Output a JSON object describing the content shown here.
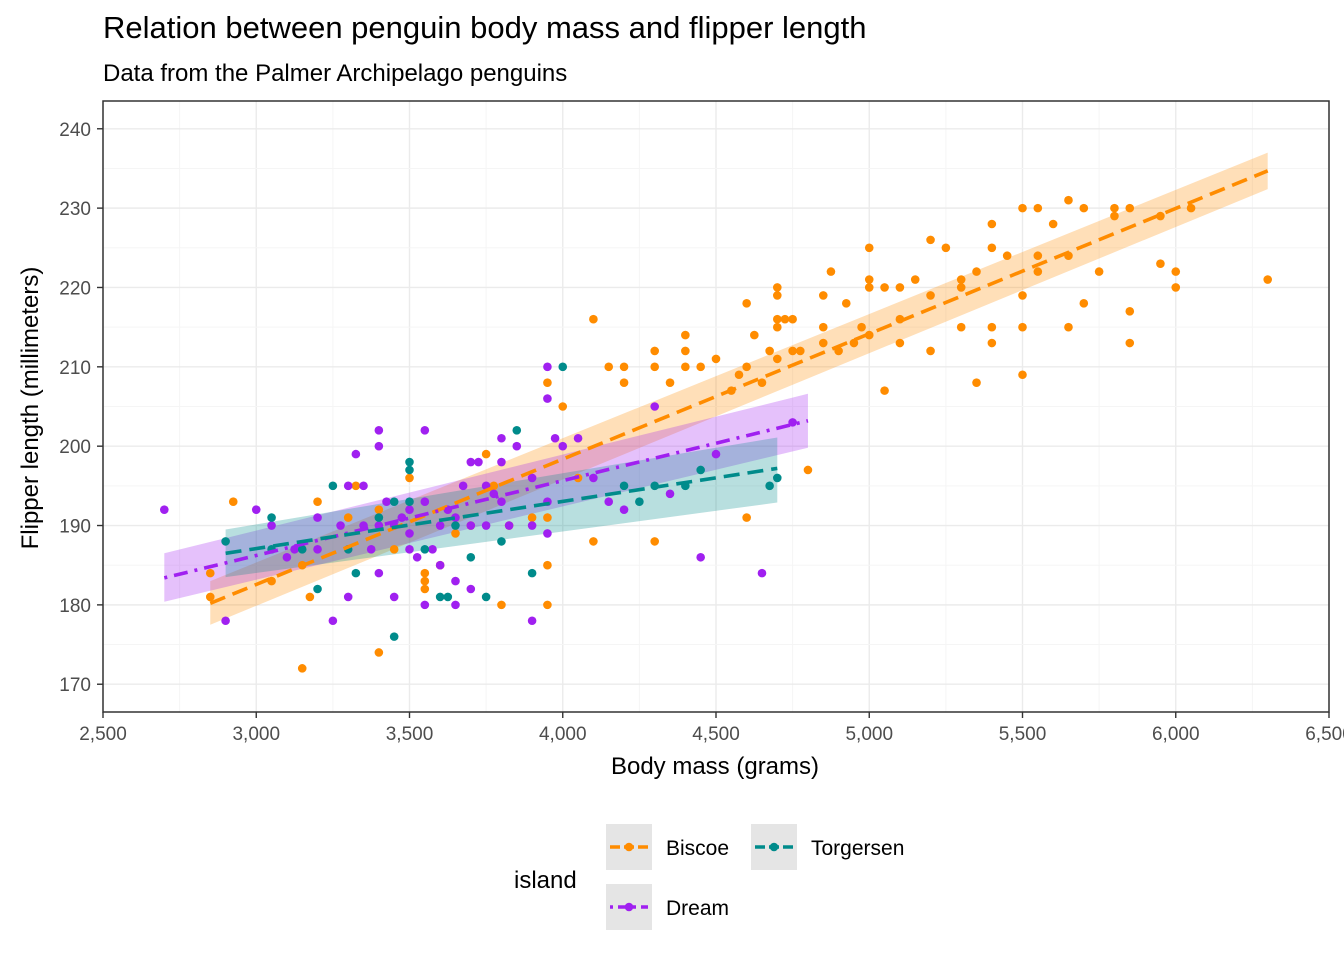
{
  "chart_data": {
    "type": "scatter",
    "title": "Relation between penguin body mass and flipper length",
    "subtitle": "Data from the Palmer Archipelago penguins",
    "xlabel": "Body mass (grams)",
    "ylabel": "Flipper length (millimeters)",
    "xlim": [
      2500,
      6500
    ],
    "ylim": [
      166.5,
      243.5
    ],
    "x_ticks": [
      2500,
      3000,
      3500,
      4000,
      4500,
      5000,
      5500,
      6000,
      6500
    ],
    "x_tick_labels": [
      "2,500",
      "3,000",
      "3,500",
      "4,000",
      "4,500",
      "5,000",
      "5,500",
      "6,000",
      "6,500"
    ],
    "y_ticks": [
      170,
      180,
      190,
      200,
      210,
      220,
      230,
      240
    ],
    "y_tick_labels": [
      "170",
      "180",
      "190",
      "200",
      "210",
      "220",
      "230",
      "240"
    ],
    "grid": true,
    "legend": {
      "title": "island",
      "position": "bottom"
    },
    "series": [
      {
        "name": "Biscoe",
        "color": "#FF8C00",
        "line_style": "dashed",
        "fit": {
          "x": [
            2850,
            6300
          ],
          "y": [
            180.2,
            234.7
          ],
          "se_lower": [
            177.5,
            232.4
          ],
          "se_upper": [
            183.0,
            237.0
          ]
        },
        "points": [
          [
            2850,
            181
          ],
          [
            2850,
            184
          ],
          [
            2925,
            193
          ],
          [
            3050,
            183
          ],
          [
            3150,
            185
          ],
          [
            3150,
            172
          ],
          [
            3175,
            181
          ],
          [
            3200,
            193
          ],
          [
            3300,
            191
          ],
          [
            3325,
            195
          ],
          [
            3400,
            174
          ],
          [
            3400,
            192
          ],
          [
            3450,
            187
          ],
          [
            3500,
            196
          ],
          [
            3550,
            184
          ],
          [
            3550,
            183
          ],
          [
            3550,
            182
          ],
          [
            3600,
            185
          ],
          [
            3650,
            189
          ],
          [
            3700,
            190
          ],
          [
            3750,
            199
          ],
          [
            3775,
            195
          ],
          [
            3800,
            180
          ],
          [
            3825,
            190
          ],
          [
            3900,
            191
          ],
          [
            3950,
            208
          ],
          [
            3950,
            185
          ],
          [
            3950,
            180
          ],
          [
            3950,
            191
          ],
          [
            4000,
            205
          ],
          [
            4050,
            196
          ],
          [
            4100,
            216
          ],
          [
            4100,
            188
          ],
          [
            4150,
            210
          ],
          [
            4200,
            210
          ],
          [
            4200,
            208
          ],
          [
            4300,
            212
          ],
          [
            4300,
            210
          ],
          [
            4300,
            188
          ],
          [
            4350,
            208
          ],
          [
            4400,
            212
          ],
          [
            4400,
            214
          ],
          [
            4400,
            210
          ],
          [
            4450,
            210
          ],
          [
            4500,
            211
          ],
          [
            4550,
            207
          ],
          [
            4575,
            209
          ],
          [
            4600,
            218
          ],
          [
            4600,
            210
          ],
          [
            4600,
            191
          ],
          [
            4625,
            214
          ],
          [
            4650,
            208
          ],
          [
            4675,
            212
          ],
          [
            4700,
            216
          ],
          [
            4700,
            215
          ],
          [
            4700,
            219
          ],
          [
            4700,
            220
          ],
          [
            4700,
            211
          ],
          [
            4725,
            216
          ],
          [
            4750,
            216
          ],
          [
            4750,
            212
          ],
          [
            4775,
            212
          ],
          [
            4800,
            197
          ],
          [
            4850,
            219
          ],
          [
            4850,
            215
          ],
          [
            4850,
            213
          ],
          [
            4875,
            222
          ],
          [
            4900,
            212
          ],
          [
            4925,
            218
          ],
          [
            4950,
            213
          ],
          [
            4975,
            215
          ],
          [
            5000,
            225
          ],
          [
            5000,
            221
          ],
          [
            5000,
            220
          ],
          [
            5000,
            214
          ],
          [
            5050,
            220
          ],
          [
            5050,
            207
          ],
          [
            5100,
            220
          ],
          [
            5100,
            216
          ],
          [
            5100,
            213
          ],
          [
            5150,
            221
          ],
          [
            5200,
            226
          ],
          [
            5200,
            219
          ],
          [
            5200,
            212
          ],
          [
            5250,
            225
          ],
          [
            5300,
            221
          ],
          [
            5300,
            220
          ],
          [
            5300,
            215
          ],
          [
            5350,
            222
          ],
          [
            5350,
            208
          ],
          [
            5400,
            228
          ],
          [
            5400,
            225
          ],
          [
            5400,
            215
          ],
          [
            5400,
            213
          ],
          [
            5450,
            224
          ],
          [
            5500,
            230
          ],
          [
            5500,
            219
          ],
          [
            5500,
            215
          ],
          [
            5500,
            209
          ],
          [
            5550,
            230
          ],
          [
            5550,
            224
          ],
          [
            5550,
            222
          ],
          [
            5600,
            228
          ],
          [
            5650,
            231
          ],
          [
            5650,
            224
          ],
          [
            5650,
            215
          ],
          [
            5700,
            230
          ],
          [
            5700,
            218
          ],
          [
            5750,
            222
          ],
          [
            5800,
            230
          ],
          [
            5800,
            229
          ],
          [
            5850,
            230
          ],
          [
            5850,
            217
          ],
          [
            5850,
            213
          ],
          [
            5950,
            223
          ],
          [
            5950,
            229
          ],
          [
            6000,
            222
          ],
          [
            6000,
            220
          ],
          [
            6050,
            230
          ],
          [
            6300,
            221
          ]
        ]
      },
      {
        "name": "Dream",
        "color": "#A020F0",
        "line_style": "dotdash",
        "fit": {
          "x": [
            2700,
            4800
          ],
          "y": [
            183.4,
            203.2
          ],
          "se_lower": [
            180.4,
            199.8
          ],
          "se_upper": [
            186.5,
            206.6
          ]
        },
        "points": [
          [
            2700,
            192
          ],
          [
            2900,
            178
          ],
          [
            3000,
            192
          ],
          [
            3050,
            190
          ],
          [
            3100,
            186
          ],
          [
            3125,
            187
          ],
          [
            3200,
            191
          ],
          [
            3200,
            187
          ],
          [
            3250,
            178
          ],
          [
            3275,
            190
          ],
          [
            3300,
            181
          ],
          [
            3300,
            195
          ],
          [
            3325,
            199
          ],
          [
            3350,
            195
          ],
          [
            3350,
            190
          ],
          [
            3375,
            187
          ],
          [
            3400,
            202
          ],
          [
            3400,
            200
          ],
          [
            3400,
            190
          ],
          [
            3400,
            184
          ],
          [
            3425,
            193
          ],
          [
            3450,
            190
          ],
          [
            3450,
            181
          ],
          [
            3475,
            191
          ],
          [
            3500,
            192
          ],
          [
            3500,
            189
          ],
          [
            3500,
            187
          ],
          [
            3525,
            186
          ],
          [
            3550,
            202
          ],
          [
            3550,
            193
          ],
          [
            3550,
            180
          ],
          [
            3575,
            187
          ],
          [
            3600,
            190
          ],
          [
            3600,
            185
          ],
          [
            3625,
            192
          ],
          [
            3650,
            191
          ],
          [
            3650,
            183
          ],
          [
            3650,
            180
          ],
          [
            3675,
            195
          ],
          [
            3700,
            198
          ],
          [
            3700,
            190
          ],
          [
            3700,
            182
          ],
          [
            3725,
            198
          ],
          [
            3750,
            195
          ],
          [
            3750,
            190
          ],
          [
            3775,
            194
          ],
          [
            3800,
            198
          ],
          [
            3800,
            193
          ],
          [
            3800,
            201
          ],
          [
            3825,
            190
          ],
          [
            3850,
            200
          ],
          [
            3900,
            196
          ],
          [
            3900,
            190
          ],
          [
            3900,
            178
          ],
          [
            3950,
            210
          ],
          [
            3950,
            206
          ],
          [
            3950,
            193
          ],
          [
            3950,
            189
          ],
          [
            3975,
            201
          ],
          [
            4000,
            200
          ],
          [
            4050,
            201
          ],
          [
            4100,
            196
          ],
          [
            4150,
            193
          ],
          [
            4200,
            192
          ],
          [
            4300,
            205
          ],
          [
            4350,
            194
          ],
          [
            4450,
            186
          ],
          [
            4500,
            199
          ],
          [
            4650,
            184
          ],
          [
            4750,
            203
          ]
        ]
      },
      {
        "name": "Torgersen",
        "color": "#008B8B",
        "line_style": "dashed",
        "fit": {
          "x": [
            2900,
            4700
          ],
          "y": [
            186.5,
            197.2
          ],
          "se_lower": [
            183.5,
            192.9
          ],
          "se_upper": [
            189.5,
            201.1
          ]
        },
        "points": [
          [
            2900,
            188
          ],
          [
            3050,
            191
          ],
          [
            3050,
            187
          ],
          [
            3150,
            187
          ],
          [
            3200,
            182
          ],
          [
            3250,
            195
          ],
          [
            3300,
            187
          ],
          [
            3325,
            184
          ],
          [
            3400,
            191
          ],
          [
            3450,
            193
          ],
          [
            3450,
            176
          ],
          [
            3500,
            198
          ],
          [
            3500,
            197
          ],
          [
            3500,
            193
          ],
          [
            3550,
            187
          ],
          [
            3600,
            181
          ],
          [
            3625,
            181
          ],
          [
            3650,
            190
          ],
          [
            3700,
            186
          ],
          [
            3750,
            181
          ],
          [
            3800,
            188
          ],
          [
            3850,
            202
          ],
          [
            3900,
            184
          ],
          [
            4000,
            210
          ],
          [
            4200,
            195
          ],
          [
            4250,
            193
          ],
          [
            4300,
            195
          ],
          [
            4400,
            195
          ],
          [
            4450,
            197
          ],
          [
            4700,
            196
          ],
          [
            4675,
            195
          ]
        ]
      }
    ]
  }
}
